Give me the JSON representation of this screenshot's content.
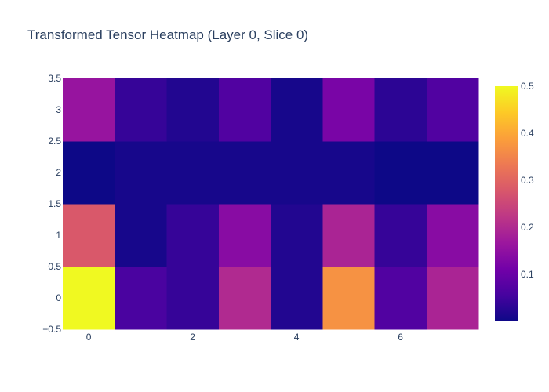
{
  "chart_data": {
    "type": "heatmap",
    "title": "Transformed Tensor Heatmap (Layer 0, Slice 0)",
    "xlabel": "",
    "ylabel": "",
    "x": [
      0,
      1,
      2,
      3,
      4,
      5,
      6,
      7
    ],
    "y": [
      0,
      1,
      2,
      3
    ],
    "z": [
      [
        0.5,
        0.06,
        0.04,
        0.2,
        0.02,
        0.37,
        0.07,
        0.19
      ],
      [
        0.28,
        0.01,
        0.04,
        0.14,
        0.02,
        0.19,
        0.04,
        0.14
      ],
      [
        0.0,
        0.01,
        0.01,
        0.01,
        0.01,
        0.01,
        0.0,
        0.0
      ],
      [
        0.16,
        0.04,
        0.02,
        0.07,
        0.01,
        0.12,
        0.03,
        0.07
      ]
    ],
    "xlim": [
      -0.5,
      7.5
    ],
    "ylim": [
      -0.5,
      3.5
    ],
    "x_ticks": [
      "0",
      "2",
      "4",
      "6"
    ],
    "y_ticks": [
      "−0.5",
      "0",
      "0.5",
      "1",
      "1.5",
      "2",
      "2.5",
      "3",
      "3.5"
    ],
    "colorbar": {
      "min": 0,
      "max": 0.5,
      "ticks": [
        "0.1",
        "0.2",
        "0.3",
        "0.4",
        "0.5"
      ],
      "colorscale": [
        "#0d0887",
        "#46039f",
        "#7201a8",
        "#9c179e",
        "#bd3786",
        "#d8576b",
        "#ed7953",
        "#fb9f3a",
        "#fdca26",
        "#f0f921"
      ]
    }
  }
}
